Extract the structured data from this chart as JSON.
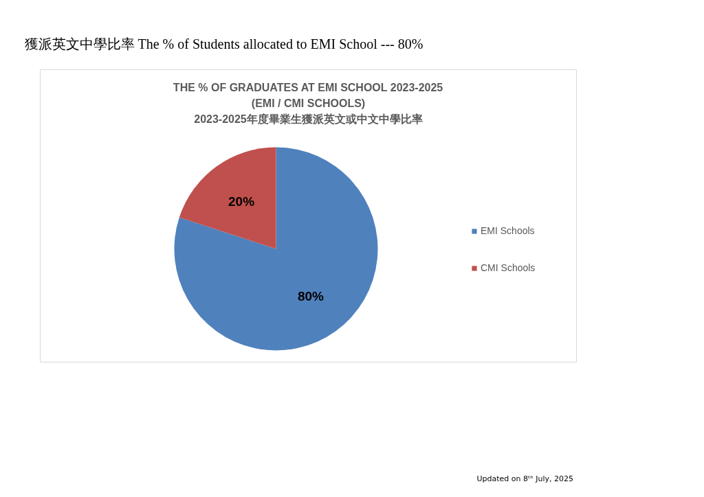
{
  "chart_data": {
    "type": "pie",
    "title": "THE % OF GRADUATES AT EMI SCHOOL 2023-2025\n(EMI / CMI SCHOOLS)\n2023-2025年度畢業生獲派英文或中文中學比率",
    "categories": [
      "EMI Schools",
      "CMI Schools"
    ],
    "values": [
      80,
      20
    ],
    "colors": [
      "#4f81bd",
      "#c0504d"
    ],
    "value_labels": [
      "80%",
      "20%"
    ],
    "legend": "right",
    "annotations": [
      "獲派英文中學比率  The % of Students allocated to EMI School    ---    80%",
      "Updated on 8ᵗʰ July, 2025"
    ]
  }
}
